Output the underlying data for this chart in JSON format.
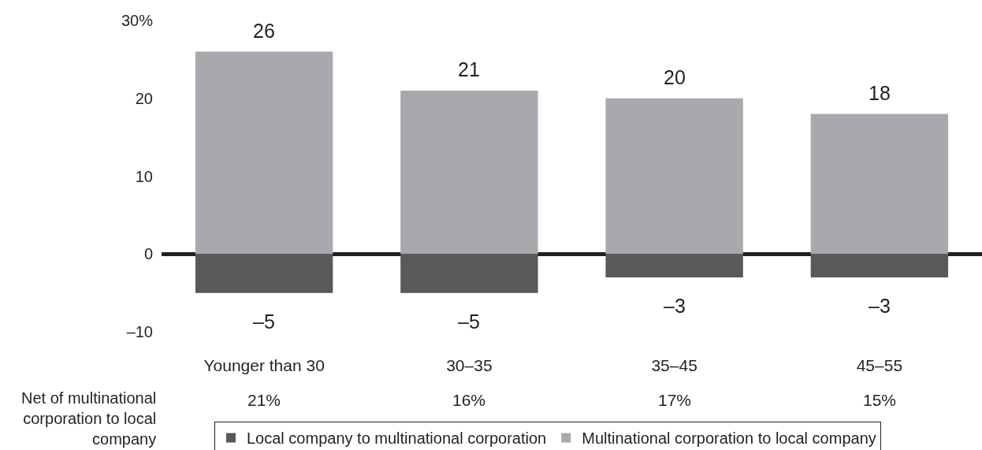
{
  "chart_data": {
    "type": "bar",
    "stacked": true,
    "categories": [
      "Younger than 30",
      "30–35",
      "35–45",
      "45–55"
    ],
    "series": [
      {
        "name": "Local company to multinational corporation",
        "color": "#58595b",
        "values": [
          -5,
          -5,
          -3,
          -3
        ],
        "value_labels": [
          "–5",
          "–5",
          "–3",
          "–3"
        ]
      },
      {
        "name": "Multinational corporation to local company",
        "color": "#a7a9ac",
        "values": [
          26,
          21,
          20,
          18
        ],
        "value_labels": [
          "26",
          "21",
          "20",
          "18"
        ]
      }
    ],
    "annotations": [
      "Net of multinational corporation to local company",
      "21%",
      "16%",
      "17%",
      "15%"
    ],
    "ylim": [
      -10,
      30
    ],
    "yticks": [
      {
        "value": 30,
        "label": "30%"
      },
      20,
      10,
      0,
      {
        "value": -10,
        "label": "–10"
      }
    ],
    "legend": "bottom"
  }
}
